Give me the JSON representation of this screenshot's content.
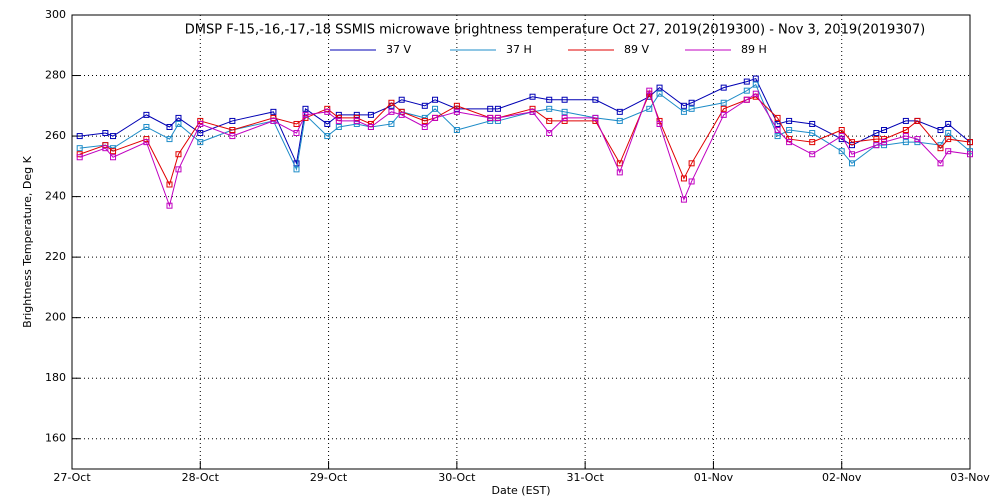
{
  "chart_data": {
    "type": "line",
    "title": "DMSP F-15,-16,-17,-18 SSMIS microwave brightness temperature Oct 27, 2019(2019300) - Nov  3, 2019(2019307)",
    "xlabel": "Date (EST)",
    "ylabel": "Brightness Temperature, Deg K",
    "x": [
      0.06,
      0.26,
      0.32,
      0.58,
      0.76,
      0.83,
      1.0,
      1.25,
      1.57,
      1.75,
      1.82,
      1.99,
      2.08,
      2.22,
      2.33,
      2.49,
      2.57,
      2.75,
      2.83,
      3.0,
      3.26,
      3.32,
      3.59,
      3.72,
      3.84,
      4.08,
      4.27,
      4.5,
      4.58,
      4.77,
      4.83,
      5.08,
      5.26,
      5.33,
      5.5,
      5.59,
      5.77,
      6.0,
      6.08,
      6.27,
      6.33,
      6.5,
      6.59,
      6.77,
      6.83,
      7.0
    ],
    "series": [
      {
        "name": "37 V",
        "color": "#0000b4",
        "values": [
          260,
          261,
          260,
          267,
          263,
          266,
          261,
          265,
          268,
          251,
          269,
          264,
          267,
          267,
          267,
          270,
          272,
          270,
          272,
          269,
          269,
          269,
          273,
          272,
          272,
          272,
          268,
          273,
          276,
          270,
          271,
          276,
          278,
          279,
          264,
          265,
          264,
          259,
          257,
          261,
          262,
          265,
          265,
          262,
          264,
          258
        ]
      },
      {
        "name": "37 H",
        "color": "#1e8cc8",
        "values": [
          256,
          257,
          256,
          263,
          259,
          264,
          258,
          262,
          265,
          249,
          267,
          260,
          263,
          264,
          263,
          264,
          268,
          266,
          269,
          262,
          265,
          265,
          268,
          269,
          268,
          266,
          265,
          269,
          274,
          268,
          269,
          271,
          275,
          277,
          260,
          262,
          261,
          255,
          251,
          257,
          257,
          258,
          258,
          257,
          261,
          255
        ]
      },
      {
        "name": "89 V",
        "color": "#e00000",
        "values": [
          254,
          257,
          255,
          259,
          244,
          254,
          265,
          262,
          266,
          264,
          266,
          269,
          266,
          266,
          264,
          271,
          268,
          265,
          266,
          270,
          266,
          266,
          269,
          265,
          265,
          265,
          251,
          274,
          265,
          246,
          251,
          269,
          272,
          273,
          266,
          259,
          258,
          262,
          258,
          259,
          259,
          262,
          265,
          256,
          259,
          258
        ]
      },
      {
        "name": "89 H",
        "color": "#c000c0",
        "values": [
          253,
          256,
          253,
          258,
          237,
          249,
          264,
          260,
          265,
          261,
          267,
          268,
          265,
          265,
          263,
          268,
          267,
          263,
          266,
          268,
          266,
          266,
          268,
          261,
          266,
          266,
          248,
          275,
          264,
          239,
          245,
          267,
          272,
          274,
          262,
          258,
          254,
          260,
          254,
          257,
          258,
          260,
          259,
          251,
          255,
          254
        ]
      }
    ],
    "xlim": [
      0,
      7
    ],
    "xticks": [
      {
        "value": 0,
        "label": "27-Oct"
      },
      {
        "value": 1,
        "label": "28-Oct"
      },
      {
        "value": 2,
        "label": "29-Oct"
      },
      {
        "value": 3,
        "label": "30-Oct"
      },
      {
        "value": 4,
        "label": "31-Oct"
      },
      {
        "value": 5,
        "label": "01-Nov"
      },
      {
        "value": 6,
        "label": "02-Nov"
      },
      {
        "value": 7,
        "label": "03-Nov"
      }
    ],
    "ylim": [
      150,
      300
    ],
    "yticks": [
      160,
      180,
      200,
      220,
      240,
      260,
      280,
      300
    ],
    "grid": true
  }
}
